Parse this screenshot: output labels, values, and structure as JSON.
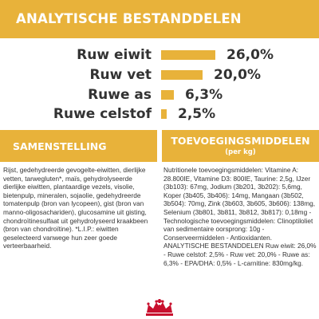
{
  "header": {
    "title": "ANALYTISCHE BESTANDDELEN"
  },
  "rows": [
    {
      "label": "Ruw eiwit",
      "value_text": "26,0%",
      "value": 26.0
    },
    {
      "label": "Ruw vet",
      "value_text": "20,0%",
      "value": 20.0
    },
    {
      "label": "Ruwe as",
      "value_text": "6,3%",
      "value": 6.3
    },
    {
      "label": "Ruwe celstof",
      "value_text": "2,5%",
      "value": 2.5
    }
  ],
  "samenstelling": {
    "title": "SAMENSTELLING",
    "text": "Rijst, gedehydreerde gevogelte-eiwitten, dierlijke vetten, tarwegluten*, maïs, gehydrolyseerde dierlijke eiwitten, plantaardige vezels, visolie, bietenpulp, mineralen, sojaolie, gedehydreerde tomatenpulp (bron van lycopeen), gist (bron van manno-oligosachariden), glucosamine uit gisting, chondroïtinesulfaat uit gehydrolyseerd kraakbeen (bron van chondroïtine). *L.I.P.: eiwitten geselecteerd vanwege hun zeer goede verteerbaarheid."
  },
  "toevoegingsmiddelen": {
    "title": "TOEVOEGINGSMIDDELEN",
    "subtitle": "(per kg)",
    "text": "Nutritionele toevoegingsmiddelen: Vitamine A: 28.800IE, Vitamine D3: 800IE, Taurine: 2,5g, IJzer (3b103): 67mg, Jodium (3b201, 3b202): 5,6mg, Koper (3b405, 3b406): 14mg, Mangaan (3b502, 3b504): 70mg, Zink (3b603, 3b605, 3b606): 138mg, Selenium (3b801, 3b811, 3b812, 3b817): 0,18mg - Technologische toevoegingsmiddelen: Clinoptiloliet van sedimentaire oorsprong: 10g - Conserveermiddelen - Antioxidanten. ANALYTISCHE BESTANDDELEN Ruw eiwit: 26,0% - Ruwe celstof: 2,5% - Ruw vet: 20,0% - Ruwe as: 6,3% - EPA/DHA: 0,5% - L-carnitine: 830mg/kg."
  },
  "colors": {
    "accent": "#e8b23a",
    "text": "#333333",
    "logo": "#c8102e"
  },
  "logo": {
    "icon": "crown-icon"
  }
}
